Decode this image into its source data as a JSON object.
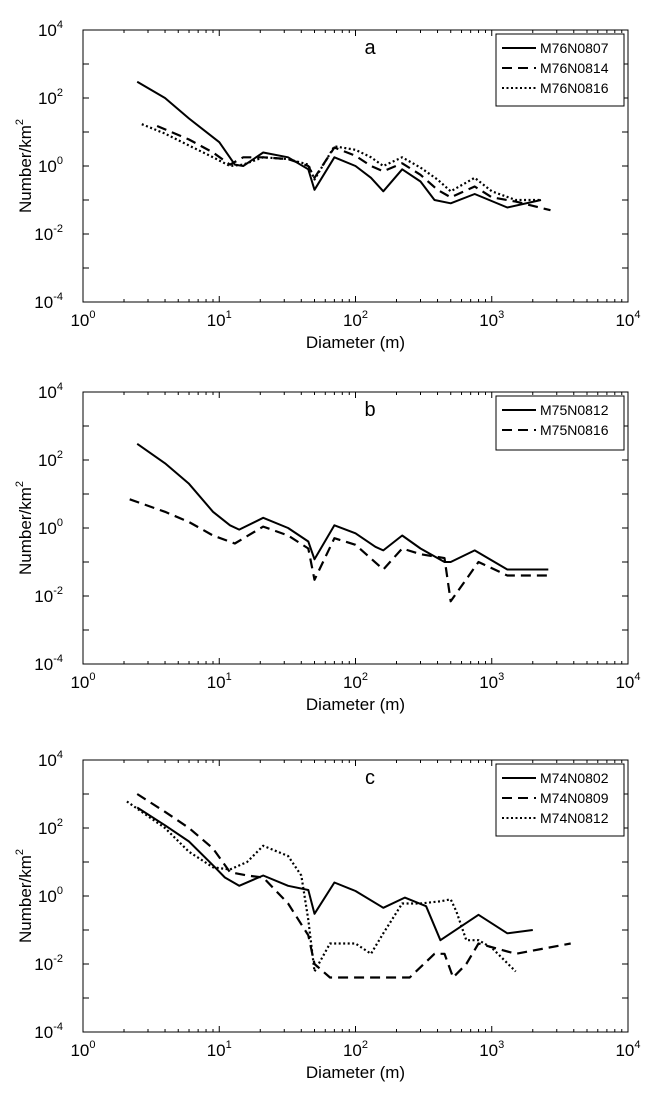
{
  "chart_data": [
    {
      "type": "line",
      "panel_label": "a",
      "xlabel": "Diameter (m)",
      "ylabel": "Number/km",
      "ylabel_sup": "2",
      "xscale": "log",
      "yscale": "log",
      "xlim": [
        1,
        10000
      ],
      "ylim": [
        0.0001,
        10000
      ],
      "x_ticks": [
        {
          "base": "10",
          "exp": "0"
        },
        {
          "base": "10",
          "exp": "1"
        },
        {
          "base": "10",
          "exp": "2"
        },
        {
          "base": "10",
          "exp": "3"
        },
        {
          "base": "10",
          "exp": "4"
        }
      ],
      "y_ticks": [
        {
          "base": "10",
          "exp": "-4"
        },
        {
          "base": "10",
          "exp": "-2"
        },
        {
          "base": "10",
          "exp": "0"
        },
        {
          "base": "10",
          "exp": "2"
        },
        {
          "base": "10",
          "exp": "4"
        }
      ],
      "grid": false,
      "legend_position": "top-right",
      "series": [
        {
          "name": "M76N0807",
          "style": "solid",
          "x": [
            2.5,
            4,
            6,
            10,
            13,
            15,
            21,
            32,
            45,
            50,
            70,
            100,
            130,
            160,
            220,
            300,
            380,
            500,
            750,
            1300,
            2300
          ],
          "y": [
            300,
            100,
            25,
            5,
            1.1,
            1.0,
            2.5,
            1.8,
            0.8,
            0.2,
            1.8,
            1.0,
            0.45,
            0.18,
            0.8,
            0.35,
            0.1,
            0.08,
            0.15,
            0.06,
            0.1
          ]
        },
        {
          "name": "M76N0814",
          "style": "dashed",
          "x": [
            3.5,
            6,
            9,
            12,
            15,
            21,
            32,
            45,
            50,
            70,
            100,
            130,
            160,
            220,
            300,
            400,
            500,
            750,
            1000,
            1500,
            2700
          ],
          "y": [
            15,
            6,
            2.5,
            1.1,
            1.8,
            1.8,
            1.6,
            1.0,
            0.45,
            3.5,
            2.0,
            1.0,
            0.7,
            1.2,
            0.55,
            0.2,
            0.12,
            0.25,
            0.12,
            0.09,
            0.05
          ]
        },
        {
          "name": "M76N0816",
          "style": "dotted",
          "x": [
            2.7,
            4,
            6,
            9,
            12,
            15,
            21,
            32,
            45,
            50,
            70,
            100,
            130,
            160,
            220,
            300,
            400,
            500,
            750,
            1000,
            1500,
            2300
          ],
          "y": [
            17,
            9,
            4,
            1.8,
            1.0,
            1.1,
            1.8,
            1.6,
            1.1,
            0.4,
            3.8,
            3.0,
            1.8,
            1.0,
            1.8,
            0.9,
            0.4,
            0.18,
            0.45,
            0.18,
            0.1,
            0.1
          ]
        }
      ]
    },
    {
      "type": "line",
      "panel_label": "b",
      "xlabel": "Diameter (m)",
      "ylabel": "Number/km",
      "ylabel_sup": "2",
      "xscale": "log",
      "yscale": "log",
      "xlim": [
        1,
        10000
      ],
      "ylim": [
        0.0001,
        10000
      ],
      "x_ticks": [
        {
          "base": "10",
          "exp": "0"
        },
        {
          "base": "10",
          "exp": "1"
        },
        {
          "base": "10",
          "exp": "2"
        },
        {
          "base": "10",
          "exp": "3"
        },
        {
          "base": "10",
          "exp": "4"
        }
      ],
      "y_ticks": [
        {
          "base": "10",
          "exp": "-4"
        },
        {
          "base": "10",
          "exp": "-2"
        },
        {
          "base": "10",
          "exp": "0"
        },
        {
          "base": "10",
          "exp": "2"
        },
        {
          "base": "10",
          "exp": "4"
        }
      ],
      "grid": false,
      "legend_position": "top-right",
      "series": [
        {
          "name": "M75N0812",
          "style": "solid",
          "x": [
            2.5,
            4,
            6,
            9,
            12,
            14,
            21,
            32,
            45,
            50,
            70,
            100,
            140,
            160,
            220,
            300,
            450,
            500,
            750,
            1300,
            2600
          ],
          "y": [
            300,
            80,
            20,
            3,
            1.2,
            0.9,
            2.0,
            1.0,
            0.4,
            0.12,
            1.2,
            0.7,
            0.28,
            0.22,
            0.6,
            0.25,
            0.1,
            0.1,
            0.22,
            0.06,
            0.06
          ]
        },
        {
          "name": "M75N0816",
          "style": "dashed",
          "x": [
            2.2,
            4,
            6,
            9,
            13,
            21,
            32,
            45,
            50,
            70,
            100,
            160,
            220,
            300,
            450,
            500,
            800,
            1300,
            2600
          ],
          "y": [
            7,
            3,
            1.5,
            0.6,
            0.35,
            1.1,
            0.6,
            0.25,
            0.03,
            0.5,
            0.32,
            0.06,
            0.25,
            0.17,
            0.13,
            0.007,
            0.1,
            0.04,
            0.04
          ]
        }
      ]
    },
    {
      "type": "line",
      "panel_label": "c",
      "xlabel": "Diameter (m)",
      "ylabel": "Number/km",
      "ylabel_sup": "2",
      "xscale": "log",
      "yscale": "log",
      "xlim": [
        1,
        10000
      ],
      "ylim": [
        0.0001,
        10000
      ],
      "x_ticks": [
        {
          "base": "10",
          "exp": "0"
        },
        {
          "base": "10",
          "exp": "1"
        },
        {
          "base": "10",
          "exp": "2"
        },
        {
          "base": "10",
          "exp": "3"
        },
        {
          "base": "10",
          "exp": "4"
        }
      ],
      "y_ticks": [
        {
          "base": "10",
          "exp": "-4"
        },
        {
          "base": "10",
          "exp": "-2"
        },
        {
          "base": "10",
          "exp": "0"
        },
        {
          "base": "10",
          "exp": "2"
        },
        {
          "base": "10",
          "exp": "4"
        }
      ],
      "grid": false,
      "legend_position": "top-right",
      "series": [
        {
          "name": "M74N0802",
          "style": "solid",
          "x": [
            2.5,
            4,
            6,
            9,
            11,
            14,
            21,
            32,
            45,
            50,
            70,
            100,
            160,
            230,
            330,
            420,
            500,
            800,
            1300,
            2000
          ],
          "y": [
            400,
            120,
            40,
            8,
            3.5,
            2.0,
            4.0,
            2.0,
            1.5,
            0.3,
            2.5,
            1.4,
            0.45,
            0.9,
            0.5,
            0.05,
            0.08,
            0.28,
            0.08,
            0.1
          ]
        },
        {
          "name": "M74N0809",
          "style": "dashed",
          "x": [
            2.5,
            4,
            6,
            9,
            12,
            16,
            21,
            32,
            45,
            50,
            65,
            100,
            160,
            250,
            380,
            450,
            520,
            650,
            800,
            1500,
            3800
          ],
          "y": [
            1000,
            300,
            100,
            25,
            5,
            4,
            3.5,
            0.6,
            0.07,
            0.01,
            0.004,
            0.004,
            0.004,
            0.004,
            0.02,
            0.02,
            0.004,
            0.01,
            0.04,
            0.02,
            0.04
          ]
        },
        {
          "name": "M74N0812",
          "style": "dotted",
          "x": [
            2.1,
            4,
            6,
            9,
            12,
            16,
            21,
            32,
            40,
            45,
            50,
            65,
            100,
            130,
            160,
            220,
            300,
            420,
            500,
            550,
            650,
            800,
            1000,
            1500
          ],
          "y": [
            600,
            100,
            20,
            7,
            6,
            10,
            30,
            15,
            4,
            0.2,
            0.006,
            0.04,
            0.04,
            0.02,
            0.08,
            0.6,
            0.6,
            0.7,
            0.8,
            0.35,
            0.05,
            0.05,
            0.03,
            0.006
          ]
        }
      ]
    }
  ]
}
